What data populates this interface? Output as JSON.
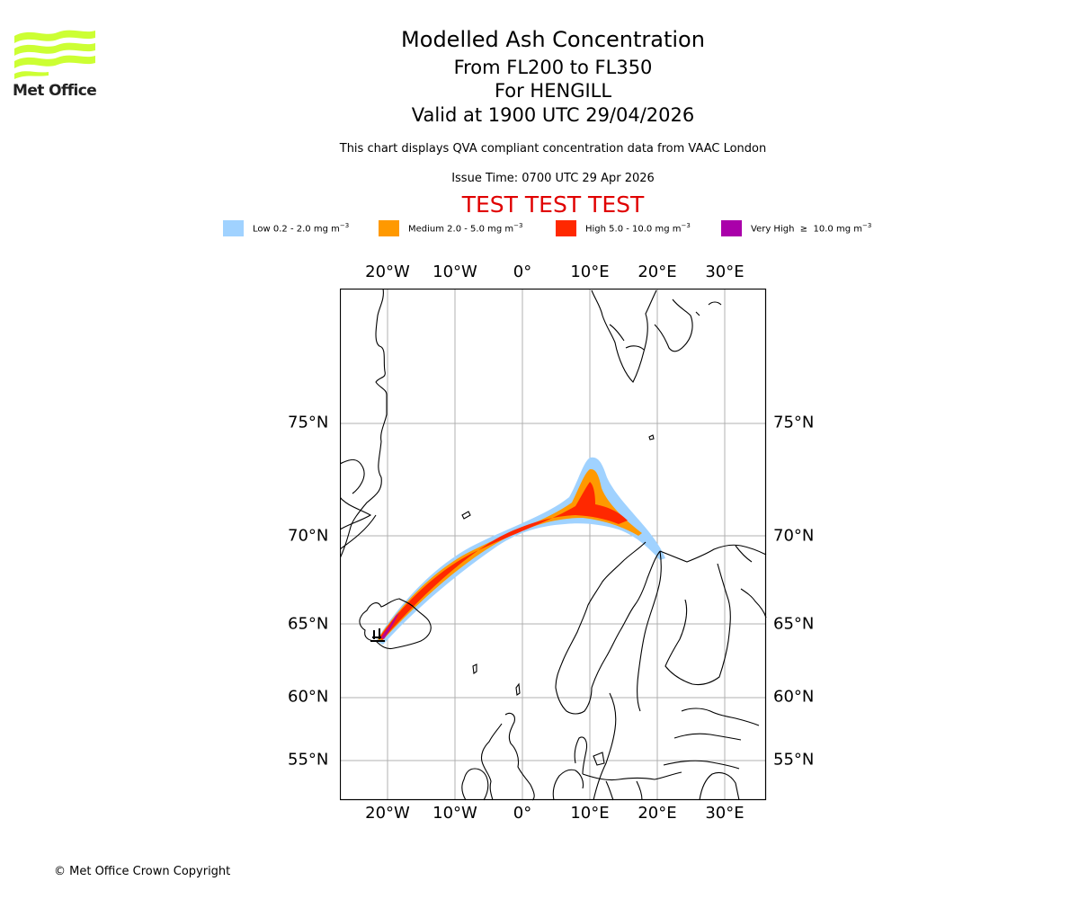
{
  "logo": {
    "text": "Met Office",
    "color": "#ccff33"
  },
  "header": {
    "title": "Modelled Ash Concentration",
    "levels": "From FL200 to FL350",
    "volcano": "For HENGILL",
    "valid": "Valid at 1900 UTC 29/04/2026",
    "description": "This chart displays QVA compliant concentration data from VAAC London",
    "issue_time": "Issue Time: 0700 UTC 29 Apr 2026",
    "test_banner": "TEST TEST TEST"
  },
  "legend": [
    {
      "name": "Low",
      "label": "Low 0.2 - 2.0 mg m",
      "exp": "−3",
      "color": "#a0d2ff"
    },
    {
      "name": "Medium",
      "label": "Medium 2.0 - 5.0 mg m",
      "exp": "−3",
      "color": "#ff9900"
    },
    {
      "name": "High",
      "label": "High 5.0 - 10.0 mg m",
      "exp": "−3",
      "color": "#ff2800"
    },
    {
      "name": "Very High",
      "label": "Very High  ≥  10.0 mg m",
      "exp": "−3",
      "color": "#aa00aa"
    }
  ],
  "map": {
    "lon_ticks": [
      "20°W",
      "10°W",
      "0°",
      "10°E",
      "20°E",
      "30°E"
    ],
    "lat_ticks": [
      "75°N",
      "70°N",
      "65°N",
      "60°N",
      "55°N"
    ],
    "lon_values": [
      -20,
      -10,
      0,
      10,
      20,
      30
    ],
    "lat_values": [
      75,
      70,
      65,
      60,
      55
    ],
    "gridline_color": "#b0b0b0",
    "coast_color": "#000000"
  },
  "footer": {
    "copyright": "© Met Office Crown Copyright"
  }
}
